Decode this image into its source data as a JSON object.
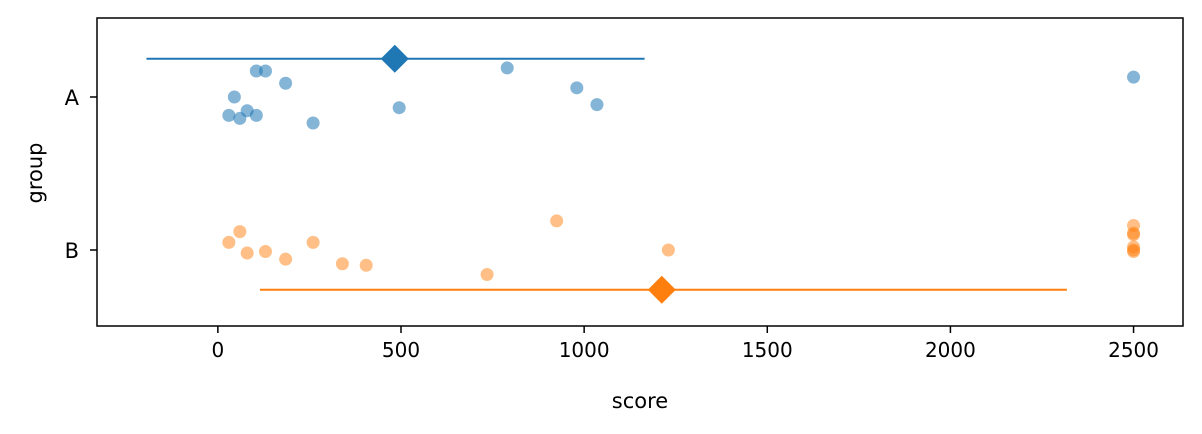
{
  "chart_data": {
    "type": "scatter",
    "xlabel": "score",
    "ylabel": "group",
    "xlim": [
      -330,
      2635
    ],
    "categories": [
      "A",
      "B"
    ],
    "x_ticks": [
      0,
      500,
      1000,
      1500,
      2000,
      2500
    ],
    "x_tick_labels": [
      "0",
      "500",
      "1000",
      "1500",
      "2000",
      "2500"
    ],
    "y_tick_labels": [
      "A",
      "B"
    ],
    "grid": false,
    "series": [
      {
        "color": "#1f77b4",
        "point_opacity": 0.55,
        "points": [
          {
            "x": 105,
            "jitter": -0.17
          },
          {
            "x": 130,
            "jitter": -0.17
          },
          {
            "x": 185,
            "jitter": -0.09
          },
          {
            "x": 45,
            "jitter": 0.0
          },
          {
            "x": 80,
            "jitter": 0.09
          },
          {
            "x": 30,
            "jitter": 0.12
          },
          {
            "x": 60,
            "jitter": 0.14
          },
          {
            "x": 105,
            "jitter": 0.12
          },
          {
            "x": 260,
            "jitter": 0.17
          },
          {
            "x": 495,
            "jitter": 0.07
          },
          {
            "x": 790,
            "jitter": -0.19
          },
          {
            "x": 980,
            "jitter": -0.06
          },
          {
            "x": 1035,
            "jitter": 0.05
          },
          {
            "x": 2500,
            "jitter": -0.13
          }
        ],
        "summary": {
          "mean": 483,
          "low": -195,
          "high": 1165,
          "offset": -0.25
        }
      },
      {
        "color": "#ff7f0e",
        "point_opacity": 0.5,
        "points": [
          {
            "x": 30,
            "jitter": -0.05
          },
          {
            "x": 60,
            "jitter": -0.12
          },
          {
            "x": 80,
            "jitter": 0.02
          },
          {
            "x": 130,
            "jitter": 0.01
          },
          {
            "x": 185,
            "jitter": 0.06
          },
          {
            "x": 260,
            "jitter": -0.05
          },
          {
            "x": 340,
            "jitter": 0.09
          },
          {
            "x": 405,
            "jitter": 0.1
          },
          {
            "x": 735,
            "jitter": 0.16
          },
          {
            "x": 925,
            "jitter": -0.19
          },
          {
            "x": 1230,
            "jitter": 0.0
          },
          {
            "x": 2500,
            "jitter": -0.16
          },
          {
            "x": 2500,
            "jitter": -0.11
          },
          {
            "x": 2500,
            "jitter": -0.1
          },
          {
            "x": 2500,
            "jitter": -0.02
          },
          {
            "x": 2500,
            "jitter": 0.01
          },
          {
            "x": 2500,
            "jitter": 0.0
          }
        ],
        "summary": {
          "mean": 1212,
          "low": 115,
          "high": 2318,
          "offset": 0.26
        }
      }
    ]
  }
}
